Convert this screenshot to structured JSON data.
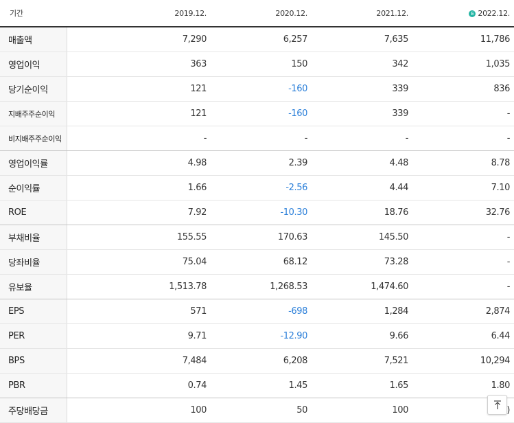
{
  "header": {
    "label": "기간",
    "periods": [
      "2019.12.",
      "2020.12.",
      "2021.12.",
      "2022.12."
    ],
    "estimate_icon_glyph": "E",
    "estimate_icon_name": "estimate-icon",
    "estimate_color": "#25b5a4"
  },
  "rows": [
    {
      "label": "매출액",
      "values": [
        "7,290",
        "6,257",
        "7,635",
        "11,786"
      ]
    },
    {
      "label": "영업이익",
      "values": [
        "363",
        "150",
        "342",
        "1,035"
      ]
    },
    {
      "label": "당기순이익",
      "values": [
        "121",
        "-160",
        "339",
        "836"
      ]
    },
    {
      "label": "지배주주순이익",
      "values": [
        "121",
        "-160",
        "339",
        "-"
      ]
    },
    {
      "label": "비지배주주순이익",
      "values": [
        "-",
        "-",
        "-",
        "-"
      ]
    },
    {
      "label": "영업이익률",
      "values": [
        "4.98",
        "2.39",
        "4.48",
        "8.78"
      ]
    },
    {
      "label": "순이익률",
      "values": [
        "1.66",
        "-2.56",
        "4.44",
        "7.10"
      ]
    },
    {
      "label": "ROE",
      "values": [
        "7.92",
        "-10.30",
        "18.76",
        "32.76"
      ]
    },
    {
      "label": "부채비율",
      "values": [
        "155.55",
        "170.63",
        "145.50",
        "-"
      ]
    },
    {
      "label": "당좌비율",
      "values": [
        "75.04",
        "68.12",
        "73.28",
        "-"
      ]
    },
    {
      "label": "유보율",
      "values": [
        "1,513.78",
        "1,268.53",
        "1,474.60",
        "-"
      ]
    },
    {
      "label": "EPS",
      "values": [
        "571",
        "-698",
        "1,284",
        "2,874"
      ]
    },
    {
      "label": "PER",
      "values": [
        "9.71",
        "-12.90",
        "9.66",
        "6.44"
      ]
    },
    {
      "label": "BPS",
      "values": [
        "7,484",
        "6,208",
        "7,521",
        "10,294"
      ]
    },
    {
      "label": "PBR",
      "values": [
        "0.74",
        "1.45",
        "1.65",
        "1.80"
      ]
    },
    {
      "label": "주당배당금",
      "values": [
        "100",
        "50",
        "100",
        ")"
      ]
    }
  ],
  "scroll_top_button": {
    "icon": "arrow-up-to-top-icon",
    "glyph": "⤒"
  },
  "colors": {
    "negative": "#2b7fd9",
    "label_bg": "#f7f7f7"
  }
}
